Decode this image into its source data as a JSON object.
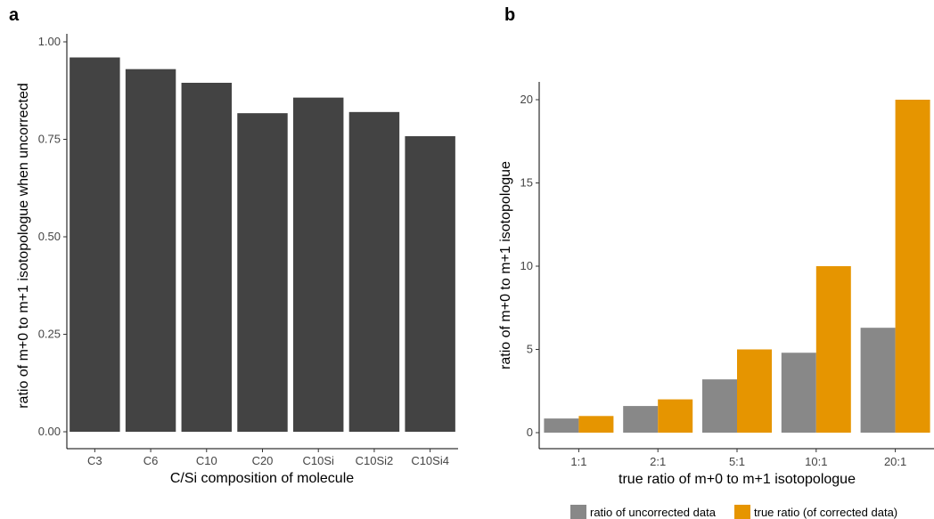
{
  "panel_a_label": "a",
  "panel_b_label": "b",
  "chart_data": [
    {
      "type": "bar",
      "panel": "a",
      "categories": [
        "C3",
        "C6",
        "C10",
        "C20",
        "C10Si",
        "C10Si2",
        "C10Si4"
      ],
      "values": [
        0.96,
        0.93,
        0.895,
        0.817,
        0.857,
        0.82,
        0.758
      ],
      "xlabel": "C/Si composition of molecule",
      "ylabel": "ratio of m+0 to m+1 isotopologue when uncorrected",
      "ylim": [
        0,
        1.0
      ],
      "yticks": [
        "0.00",
        "0.25",
        "0.50",
        "0.75",
        "1.00"
      ],
      "grid": false,
      "colors": {
        "bar": "#434343"
      }
    },
    {
      "type": "bar",
      "panel": "b",
      "categories": [
        "1:1",
        "2:1",
        "5:1",
        "10:1",
        "20:1"
      ],
      "series": [
        {
          "name": "ratio of uncorrected data",
          "values": [
            0.85,
            1.6,
            3.2,
            4.8,
            6.3
          ],
          "color": "#888888"
        },
        {
          "name": "true ratio (of corrected data)",
          "values": [
            1,
            2,
            5,
            10,
            20
          ],
          "color": "#E69500"
        }
      ],
      "xlabel": "true ratio of m+0 to m+1 isotopologue",
      "ylabel": "ratio of m+0 to m+1 isotopologue",
      "ylim": [
        0,
        21
      ],
      "yticks": [
        "0",
        "5",
        "10",
        "15",
        "20"
      ],
      "grid": false,
      "legend": "bottom"
    }
  ]
}
